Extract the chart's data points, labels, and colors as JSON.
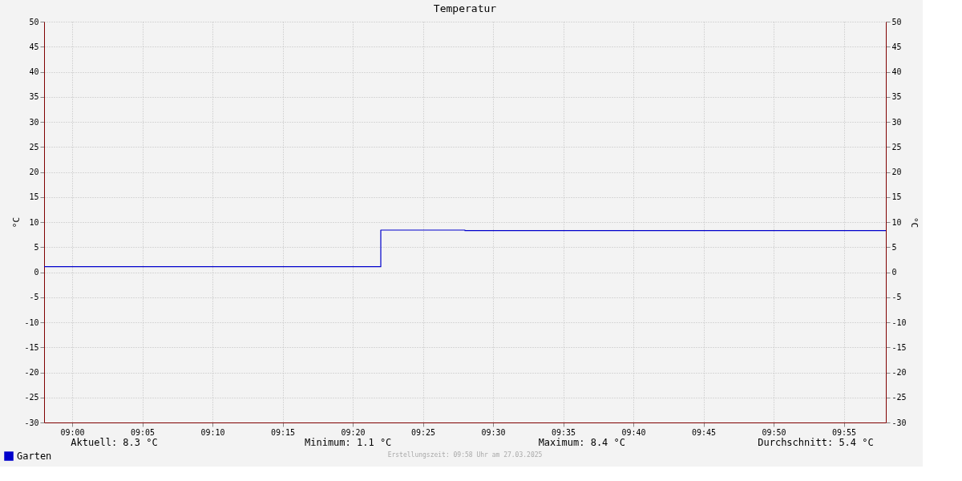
{
  "chart_data": {
    "type": "step",
    "title": "Temperatur",
    "ylabel": "°C",
    "y2label": "°C",
    "x": [
      "2025-03-27T08:58",
      "2025-03-27T09:22",
      "2025-03-27T09:28",
      "2025-03-27T09:58"
    ],
    "series": [
      {
        "name": "Garten",
        "color": "#0000cc",
        "values": [
          1.1,
          8.4,
          8.3,
          8.3
        ]
      }
    ],
    "xlim": [
      "2025-03-27T08:58",
      "2025-03-27T09:58"
    ],
    "xticks": [
      {
        "value": "2025-03-27T09:00",
        "label": "09:00"
      },
      {
        "value": "2025-03-27T09:05",
        "label": "09:05"
      },
      {
        "value": "2025-03-27T09:10",
        "label": "09:10"
      },
      {
        "value": "2025-03-27T09:15",
        "label": "09:15"
      },
      {
        "value": "2025-03-27T09:20",
        "label": "09:20"
      },
      {
        "value": "2025-03-27T09:25",
        "label": "09:25"
      },
      {
        "value": "2025-03-27T09:30",
        "label": "09:30"
      },
      {
        "value": "2025-03-27T09:35",
        "label": "09:35"
      },
      {
        "value": "2025-03-27T09:40",
        "label": "09:40"
      },
      {
        "value": "2025-03-27T09:45",
        "label": "09:45"
      },
      {
        "value": "2025-03-27T09:50",
        "label": "09:50"
      },
      {
        "value": "2025-03-27T09:55",
        "label": "09:55"
      }
    ],
    "ylim": [
      -30,
      50
    ],
    "yticks": [
      -30,
      -25,
      -20,
      -15,
      -10,
      -5,
      0,
      5,
      10,
      15,
      20,
      25,
      30,
      35,
      40,
      45,
      50
    ],
    "y2lim": [
      -30,
      50
    ],
    "y2ticks": [
      -30,
      -25,
      -20,
      -15,
      -10,
      -5,
      0,
      5,
      10,
      15,
      20,
      25,
      30,
      35,
      40,
      45,
      50
    ],
    "grid": true,
    "legend": "bottom left",
    "marker": "none",
    "line_style": "solid",
    "annotations": [
      "Aktuell: 8.3 °C",
      "Minimum: 1.1 °C",
      "Maximum: 8.4 °C",
      "Durchschnitt: 5.4 °C",
      "Erstellungszeit: 09:58 Uhr am 27.03.2025"
    ]
  }
}
